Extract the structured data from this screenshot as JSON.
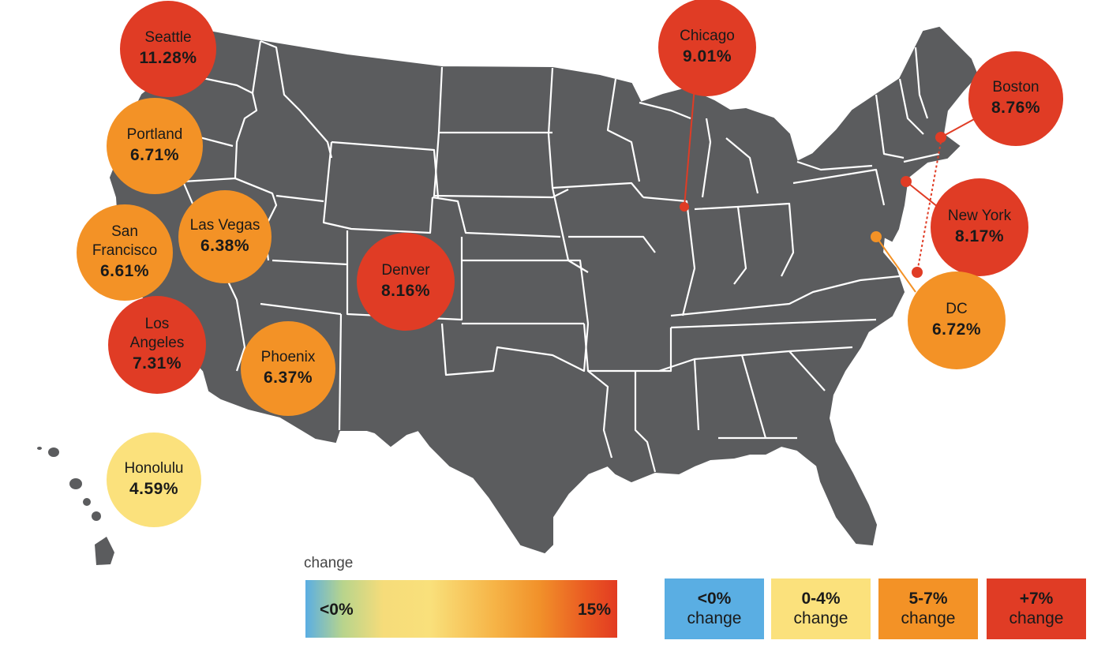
{
  "colors": {
    "land": "#5b5c5e",
    "border": "#ffffff",
    "red": "#e03c25",
    "orange": "#f39226",
    "yellow": "#fbe17c",
    "blue": "#5aaee3"
  },
  "cities": [
    {
      "name": "Seattle",
      "value": "11.28%",
      "tier": "red"
    },
    {
      "name": "Portland",
      "value": "6.71%",
      "tier": "orange"
    },
    {
      "name": "San\nFrancisco",
      "value": "6.61%",
      "tier": "orange"
    },
    {
      "name": "Las Vegas",
      "value": "6.38%",
      "tier": "orange"
    },
    {
      "name": "Los\nAngeles",
      "value": "7.31%",
      "tier": "red"
    },
    {
      "name": "Phoenix",
      "value": "6.37%",
      "tier": "orange"
    },
    {
      "name": "Denver",
      "value": "8.16%",
      "tier": "red"
    },
    {
      "name": "Honolulu",
      "value": "4.59%",
      "tier": "yellow"
    },
    {
      "name": "Chicago",
      "value": "9.01%",
      "tier": "red"
    },
    {
      "name": "Boston",
      "value": "8.76%",
      "tier": "red"
    },
    {
      "name": "New York",
      "value": "8.17%",
      "tier": "red"
    },
    {
      "name": "DC",
      "value": "6.72%",
      "tier": "orange"
    }
  ],
  "legend": {
    "title": "change",
    "gradient_low": "<0%",
    "gradient_high": "15%",
    "categories": [
      {
        "range": "<0%",
        "label": "change",
        "tier": "blue"
      },
      {
        "range": "0-4%",
        "label": "change",
        "tier": "yellow"
      },
      {
        "range": "5-7%",
        "label": "change",
        "tier": "orange"
      },
      {
        "range": "+7%",
        "label": "change",
        "tier": "red"
      }
    ]
  }
}
